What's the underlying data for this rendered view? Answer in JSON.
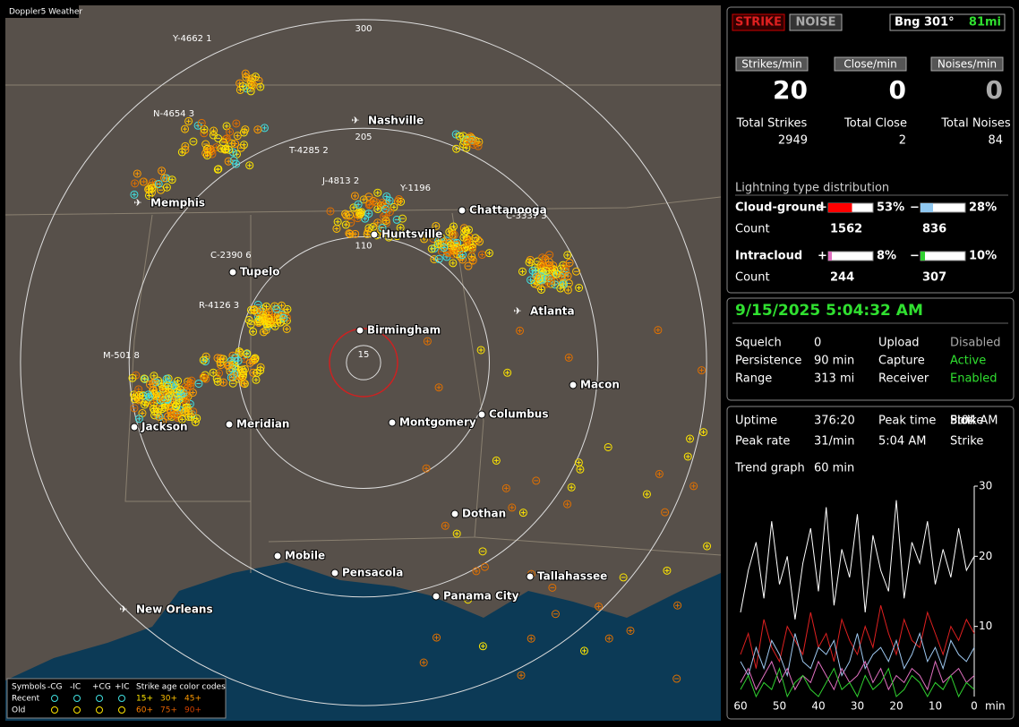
{
  "app_title": "Doppler5 Weather",
  "map": {
    "range_rings": [
      300,
      205,
      110,
      15
    ],
    "cities": [
      "Nashville",
      "Memphis",
      "Huntsville",
      "Chattanooga",
      "Tupelo",
      "Birmingham",
      "Atlanta",
      "Jackson",
      "Meridian",
      "Montgomery",
      "Columbus",
      "Macon",
      "Dothan",
      "Mobile",
      "Pensacola",
      "Tallahassee",
      "Panama City",
      "New Orleans"
    ],
    "storms": [
      "Y-4662 1",
      "N-4654 3",
      "T-4285 2",
      "J-4813 2",
      "Y-1196",
      "C-3337 3",
      "C-2390 6",
      "R-4126 3",
      "M-501 8"
    ],
    "legend": {
      "symbols_label": "Symbols",
      "types": [
        "-CG",
        "-IC",
        "+CG",
        "+IC"
      ],
      "age_label": "Strike age color codes",
      "recent": "Recent",
      "old": "Old",
      "recent_ages": [
        "15+",
        "30+",
        "45+"
      ],
      "old_ages": [
        "60+",
        "75+",
        "90+"
      ]
    }
  },
  "status": {
    "strike": "STRIKE",
    "noise": "NOISE",
    "bearing": "Bng 301°",
    "distance": "81mi"
  },
  "rates": [
    {
      "label": "Strikes/min",
      "value": 20,
      "total_label": "Total Strikes",
      "total": 2949
    },
    {
      "label": "Close/min",
      "value": 0,
      "total_label": "Total Close",
      "total": 2
    },
    {
      "label": "Noises/min",
      "value": 0,
      "total_label": "Total Noises",
      "total": 84
    }
  ],
  "distribution": {
    "title": "Lightning type distribution",
    "count_label": "Count",
    "plus_sign": "+",
    "minus_sign": "−",
    "rows": [
      {
        "name": "Cloud-ground",
        "plus": {
          "value": 53,
          "label": "53%",
          "count": 1562
        },
        "minus": {
          "value": 28,
          "label": "28%",
          "count": 836
        }
      },
      {
        "name": "Intracloud",
        "plus": {
          "value": 8,
          "label": "8%",
          "count": 244
        },
        "minus": {
          "value": 10,
          "label": "10%",
          "count": 307
        }
      }
    ]
  },
  "datetime": "9/15/2025 5:04:32 AM",
  "settings": [
    [
      "Squelch",
      "0",
      "Upload",
      "Disabled"
    ],
    [
      "Persistence",
      "90 min",
      "Capture",
      "Active"
    ],
    [
      "Range",
      "313 mi",
      "Receiver",
      "Enabled"
    ]
  ],
  "stats": [
    [
      "Uptime",
      "376:20",
      "Peak time",
      "5:04 AM",
      "Plot",
      "Strike"
    ],
    [
      "Peak rate",
      "31/min",
      "5:04 AM"
    ],
    [
      "Trend graph",
      "60 min"
    ]
  ],
  "trend": {
    "x_label": "min",
    "xlim": [
      60,
      0
    ],
    "xticks": [
      60,
      50,
      40,
      30,
      20,
      10,
      0
    ],
    "ylim": [
      0,
      30
    ],
    "yticks": [
      10,
      20,
      30
    ],
    "x": [
      60,
      58,
      56,
      54,
      52,
      50,
      48,
      46,
      44,
      42,
      40,
      38,
      36,
      34,
      32,
      30,
      28,
      26,
      24,
      22,
      20,
      18,
      16,
      14,
      12,
      10,
      8,
      6,
      4,
      2,
      0
    ],
    "series": [
      {
        "color": "#ffffff",
        "values": [
          12,
          18,
          22,
          14,
          25,
          16,
          20,
          11,
          19,
          24,
          15,
          27,
          13,
          21,
          17,
          26,
          12,
          23,
          18,
          15,
          28,
          14,
          22,
          19,
          25,
          16,
          21,
          17,
          24,
          18,
          20
        ]
      },
      {
        "color": "#e02020",
        "values": [
          6,
          9,
          4,
          11,
          7,
          5,
          10,
          8,
          6,
          12,
          7,
          9,
          5,
          11,
          8,
          6,
          10,
          7,
          13,
          9,
          6,
          11,
          8,
          7,
          12,
          9,
          6,
          10,
          8,
          11,
          9
        ]
      },
      {
        "color": "#9ec8f0",
        "values": [
          5,
          3,
          7,
          4,
          8,
          6,
          3,
          9,
          5,
          4,
          7,
          6,
          8,
          3,
          5,
          9,
          4,
          6,
          7,
          5,
          8,
          4,
          6,
          9,
          5,
          7,
          4,
          8,
          6,
          5,
          7
        ]
      },
      {
        "color": "#e070c0",
        "values": [
          2,
          4,
          1,
          3,
          5,
          2,
          4,
          1,
          3,
          2,
          5,
          3,
          1,
          4,
          2,
          3,
          5,
          2,
          4,
          1,
          3,
          2,
          4,
          3,
          1,
          5,
          2,
          3,
          4,
          2,
          3
        ]
      },
      {
        "color": "#30d030",
        "values": [
          1,
          3,
          0,
          2,
          1,
          4,
          0,
          2,
          3,
          1,
          0,
          2,
          4,
          1,
          2,
          0,
          3,
          1,
          2,
          4,
          0,
          1,
          3,
          2,
          0,
          2,
          1,
          3,
          0,
          2,
          1
        ]
      }
    ]
  }
}
